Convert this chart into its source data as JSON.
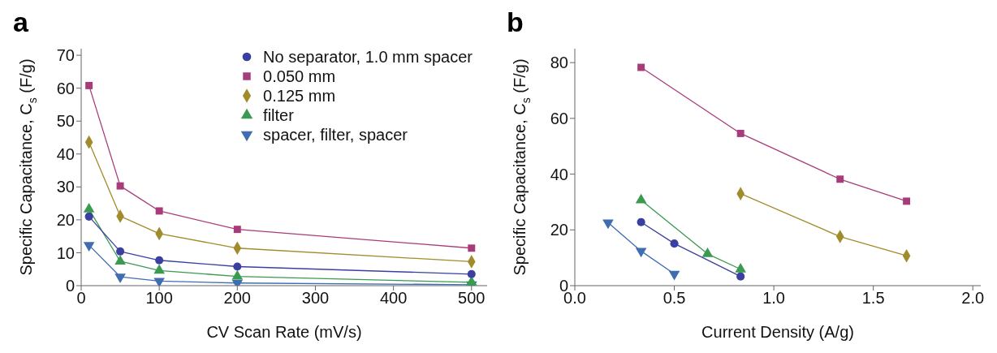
{
  "chart_data": [
    {
      "type": "line",
      "title": "a",
      "xlabel": "CV Scan Rate (mV/s)",
      "ylabel": "Specific Capacitance, C$_{s}$ (F/g)",
      "xlim": [
        0,
        520
      ],
      "xticks": [
        0,
        100,
        200,
        300,
        400,
        500
      ],
      "ylim": [
        0,
        72
      ],
      "yticks": [
        0,
        10,
        20,
        30,
        40,
        50,
        60,
        70
      ],
      "legend": "top right",
      "grid": false,
      "series": [
        {
          "name": "No separator, 1.0 mm spacer",
          "color": "#3a3fa0",
          "marker": "circle",
          "x": [
            10,
            50,
            100,
            200,
            500
          ],
          "values": [
            21,
            10.4,
            7.7,
            5.8,
            3.5
          ]
        },
        {
          "name": "0.050 mm",
          "color": "#a83c7a",
          "marker": "square",
          "x": [
            10,
            50,
            100,
            200,
            500
          ],
          "values": [
            60.8,
            30.3,
            22.7,
            17.1,
            11.4
          ]
        },
        {
          "name": "0.125 mm",
          "color": "#a08c2a",
          "marker": "diamond",
          "x": [
            10,
            50,
            100,
            200,
            500
          ],
          "values": [
            43.6,
            21.1,
            15.8,
            11.4,
            7.3
          ]
        },
        {
          "name": "filter",
          "color": "#3a9a50",
          "marker": "triangle",
          "x": [
            10,
            50,
            100,
            200,
            500
          ],
          "values": [
            23.2,
            7.4,
            4.6,
            2.8,
            1.0
          ]
        },
        {
          "name": "spacer, filter, spacer",
          "color": "#3f6db0",
          "marker": "triangle-down",
          "x": [
            10,
            50,
            100,
            200,
            500
          ],
          "values": [
            12.3,
            2.7,
            1.4,
            0.8,
            0.3
          ]
        }
      ]
    },
    {
      "type": "line",
      "title": "b",
      "xlabel": "Current Density (A/g)",
      "ylabel": "Specific Capacitance, C$_{s}$ (F/g)",
      "xlim": [
        0,
        2.04
      ],
      "xticks": [
        {
          "value": 0,
          "label": "0.0"
        },
        {
          "value": 0.5,
          "label": "0.5"
        },
        {
          "value": 1,
          "label": "1.0"
        },
        {
          "value": 1.5,
          "label": "1.5"
        },
        {
          "value": 2,
          "label": "2.0"
        }
      ],
      "ylim": [
        0,
        85
      ],
      "yticks": [
        0,
        20,
        40,
        60,
        80
      ],
      "legend": false,
      "grid": false,
      "series": [
        {
          "color": "#3a3fa0",
          "marker": "circle",
          "x": [
            0.333,
            0.5,
            0.833
          ],
          "values": [
            22.8,
            15.1,
            3.3
          ]
        },
        {
          "color": "#a83c7a",
          "marker": "square",
          "x": [
            0.333,
            0.833,
            1.333,
            1.667
          ],
          "values": [
            78.3,
            54.6,
            38.2,
            30.3
          ]
        },
        {
          "color": "#a08c2a",
          "marker": "diamond",
          "x": [
            0.833,
            1.333,
            1.667
          ],
          "values": [
            33,
            17.6,
            10.7
          ]
        },
        {
          "color": "#3a9a50",
          "marker": "triangle",
          "x": [
            0.333,
            0.667,
            0.833
          ],
          "values": [
            30.7,
            11.4,
            5.9
          ]
        },
        {
          "color": "#3f6db0",
          "marker": "triangle-down",
          "x": [
            0.167,
            0.333,
            0.5
          ],
          "values": [
            22.6,
            12.4,
            4.2
          ]
        }
      ]
    }
  ]
}
